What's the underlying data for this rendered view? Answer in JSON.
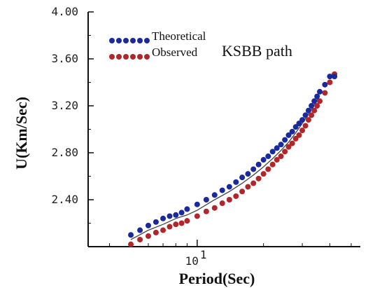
{
  "chart_data": {
    "type": "scatter",
    "xlabel": "Period(Sec)",
    "ylabel": "U(Km/Sec)",
    "x_scale": "log",
    "x_tick_label": {
      "base": "10",
      "exp": "1"
    },
    "x_range": [
      3.2,
      55
    ],
    "ylim": [
      2.0,
      4.0
    ],
    "y_ticks": [
      "4.00",
      "3.60",
      "3.20",
      "2.80",
      "2.40"
    ],
    "grid": false,
    "legend_position": "top-left",
    "legend": {
      "theoretical": "Theoretical",
      "observed": "Observed",
      "path": "KSBB path"
    },
    "colors": {
      "theoretical": "#1a2a9c",
      "observed": "#b0262a",
      "line": "#444444"
    },
    "series": [
      {
        "name": "Theoretical",
        "x": [
          5.0,
          5.5,
          6.0,
          6.5,
          7.0,
          7.5,
          8.0,
          8.5,
          9.0,
          10.0,
          11.0,
          12.0,
          13.0,
          14.0,
          15.0,
          16.0,
          17.0,
          18.0,
          19.0,
          20.0,
          21.0,
          22.0,
          23.0,
          24.0,
          25.0,
          26.0,
          27.0,
          28.0,
          29.0,
          30.0,
          31.0,
          32.0,
          33.0,
          34.0,
          35.0,
          36.0,
          38.0,
          40.0,
          42.0
        ],
        "y": [
          2.1,
          2.14,
          2.18,
          2.21,
          2.24,
          2.26,
          2.27,
          2.29,
          2.32,
          2.36,
          2.4,
          2.44,
          2.48,
          2.51,
          2.55,
          2.59,
          2.62,
          2.66,
          2.7,
          2.74,
          2.77,
          2.81,
          2.84,
          2.87,
          2.91,
          2.95,
          2.98,
          3.02,
          3.05,
          3.08,
          3.12,
          3.16,
          3.2,
          3.24,
          3.28,
          3.32,
          3.38,
          3.45,
          3.45
        ]
      },
      {
        "name": "Observed",
        "x": [
          5.0,
          5.5,
          6.0,
          6.5,
          7.0,
          7.5,
          8.0,
          8.5,
          9.0,
          10.0,
          11.0,
          12.0,
          13.0,
          14.0,
          15.0,
          16.0,
          17.0,
          18.0,
          19.0,
          20.0,
          21.0,
          22.0,
          23.0,
          24.0,
          25.0,
          26.0,
          27.0,
          28.0,
          29.0,
          30.0,
          31.0,
          32.0,
          33.0,
          34.0,
          35.0,
          36.0,
          38.0,
          40.0,
          42.0
        ],
        "y": [
          2.02,
          2.06,
          2.09,
          2.12,
          2.14,
          2.17,
          2.19,
          2.2,
          2.22,
          2.26,
          2.3,
          2.33,
          2.37,
          2.4,
          2.43,
          2.47,
          2.51,
          2.54,
          2.58,
          2.62,
          2.66,
          2.7,
          2.74,
          2.77,
          2.81,
          2.85,
          2.88,
          2.92,
          2.95,
          2.99,
          3.03,
          3.08,
          3.12,
          3.16,
          3.2,
          3.24,
          3.31,
          3.4,
          3.47
        ]
      },
      {
        "name": "",
        "kind": "line",
        "x": [
          5.0,
          6.0,
          7.0,
          8.0,
          9.0,
          10.0,
          12.0,
          14.0,
          16.0,
          18.0,
          20.0,
          22.0,
          24.0,
          26.0,
          28.0,
          30.0,
          32.0,
          34.0,
          36.0
        ],
        "y": [
          2.06,
          2.14,
          2.19,
          2.24,
          2.27,
          2.31,
          2.4,
          2.47,
          2.54,
          2.61,
          2.68,
          2.75,
          2.82,
          2.89,
          2.97,
          3.05,
          3.13,
          3.21,
          3.29
        ]
      }
    ]
  }
}
